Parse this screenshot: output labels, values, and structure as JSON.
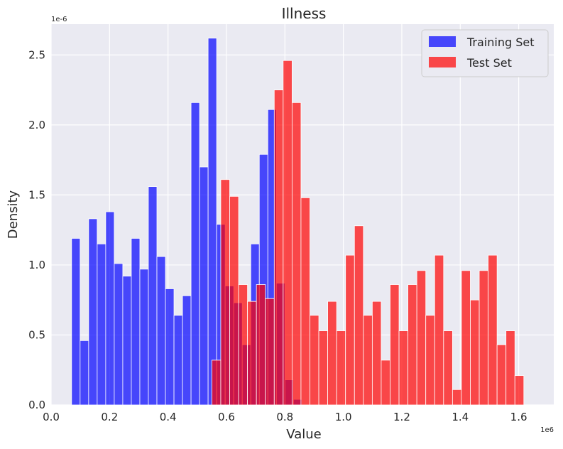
{
  "chart_data": {
    "type": "bar",
    "title": "Illness",
    "xlabel": "Value",
    "ylabel": "Density",
    "x_scale_label": "1e6",
    "y_scale_label": "1e-6",
    "xlim": [
      0.0,
      1.72
    ],
    "ylim": [
      0.0,
      2.72
    ],
    "xticks": [
      "0.0",
      "0.2",
      "0.4",
      "0.6",
      "0.8",
      "1.0",
      "1.2",
      "1.4",
      "1.6"
    ],
    "xtick_values": [
      0.0,
      0.2,
      0.4,
      0.6,
      0.8,
      1.0,
      1.2,
      1.4,
      1.6
    ],
    "yticks": [
      "0.0",
      "0.5",
      "1.0",
      "1.5",
      "2.0",
      "2.5"
    ],
    "ytick_values": [
      0.0,
      0.5,
      1.0,
      1.5,
      2.0,
      2.5
    ],
    "grid": true,
    "legend_position": "top-right",
    "series": [
      {
        "name": "Training Set",
        "color": "#0000ff",
        "bin_start": 0.07,
        "bin_width": 0.0292,
        "values": [
          1.19,
          0.46,
          1.33,
          1.15,
          1.38,
          1.01,
          0.92,
          1.19,
          0.97,
          1.56,
          1.06,
          0.83,
          0.64,
          0.78,
          2.16,
          1.7,
          2.62,
          1.29,
          0.85,
          0.73,
          0.43,
          1.15,
          1.79,
          2.11,
          0.87,
          0.18,
          0.04
        ]
      },
      {
        "name": "Test Set",
        "color": "#ff0000",
        "bin_start": 0.55,
        "bin_width": 0.0305,
        "values": [
          0.32,
          1.61,
          1.49,
          0.86,
          0.74,
          0.86,
          0.76,
          2.25,
          2.46,
          2.16,
          1.48,
          0.64,
          0.53,
          0.74,
          0.53,
          1.07,
          1.28,
          0.64,
          0.74,
          0.32,
          0.86,
          0.53,
          0.86,
          0.96,
          0.64,
          1.07,
          0.53,
          0.11,
          0.96,
          0.75,
          0.96,
          1.07,
          0.43,
          0.53,
          0.21
        ]
      }
    ]
  }
}
